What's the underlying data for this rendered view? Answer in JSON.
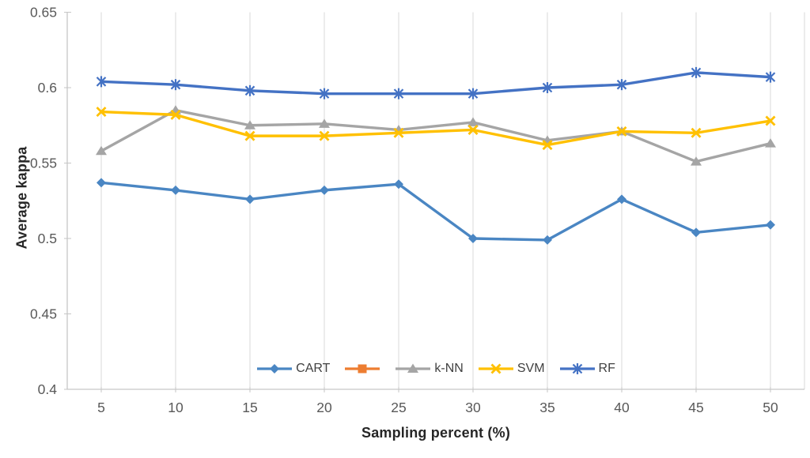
{
  "chart_data": {
    "type": "line",
    "title": "",
    "xlabel": "Sampling percent (%)",
    "ylabel": "Average kappa",
    "x": [
      5,
      10,
      15,
      20,
      25,
      30,
      35,
      40,
      45,
      50
    ],
    "x_tick_labels": [
      "5",
      "10",
      "15",
      "20",
      "25",
      "30",
      "35",
      "40",
      "45",
      "50"
    ],
    "y_ticks": [
      0.4,
      0.45,
      0.5,
      0.55,
      0.6,
      0.65
    ],
    "y_tick_labels": [
      "0.4",
      "0.45",
      "0.5",
      "0.55",
      "0.6",
      "0.65"
    ],
    "ylim": [
      0.4,
      0.65
    ],
    "xlim_padding": "half-category",
    "grid": "vertical-only",
    "legend_position": "bottom-center",
    "series": [
      {
        "name": "CART",
        "marker": "diamond",
        "color": "#4A86C3",
        "values": [
          0.537,
          0.532,
          0.526,
          0.532,
          0.536,
          0.5,
          0.499,
          0.526,
          0.504,
          0.509
        ]
      },
      {
        "name": "",
        "marker": "square",
        "color": "#ED7D31",
        "values": []
      },
      {
        "name": "k-NN",
        "marker": "triangle",
        "color": "#A5A5A5",
        "values": [
          0.558,
          0.585,
          0.575,
          0.576,
          0.572,
          0.577,
          0.565,
          0.571,
          0.551,
          0.563
        ]
      },
      {
        "name": "SVM",
        "marker": "x",
        "color": "#FFC000",
        "values": [
          0.584,
          0.582,
          0.568,
          0.568,
          0.57,
          0.572,
          0.562,
          0.571,
          0.57,
          0.578
        ]
      },
      {
        "name": "RF",
        "marker": "star",
        "color": "#4472C4",
        "values": [
          0.604,
          0.602,
          0.598,
          0.596,
          0.596,
          0.596,
          0.6,
          0.602,
          0.61,
          0.607
        ]
      }
    ],
    "colors": {
      "gridline": "#D9D9D9",
      "axis_line": "#C6C6C6",
      "tick_label": "#595959",
      "axis_title": "#262626",
      "legend_text": "#404040",
      "background": "#FFFFFF"
    }
  }
}
